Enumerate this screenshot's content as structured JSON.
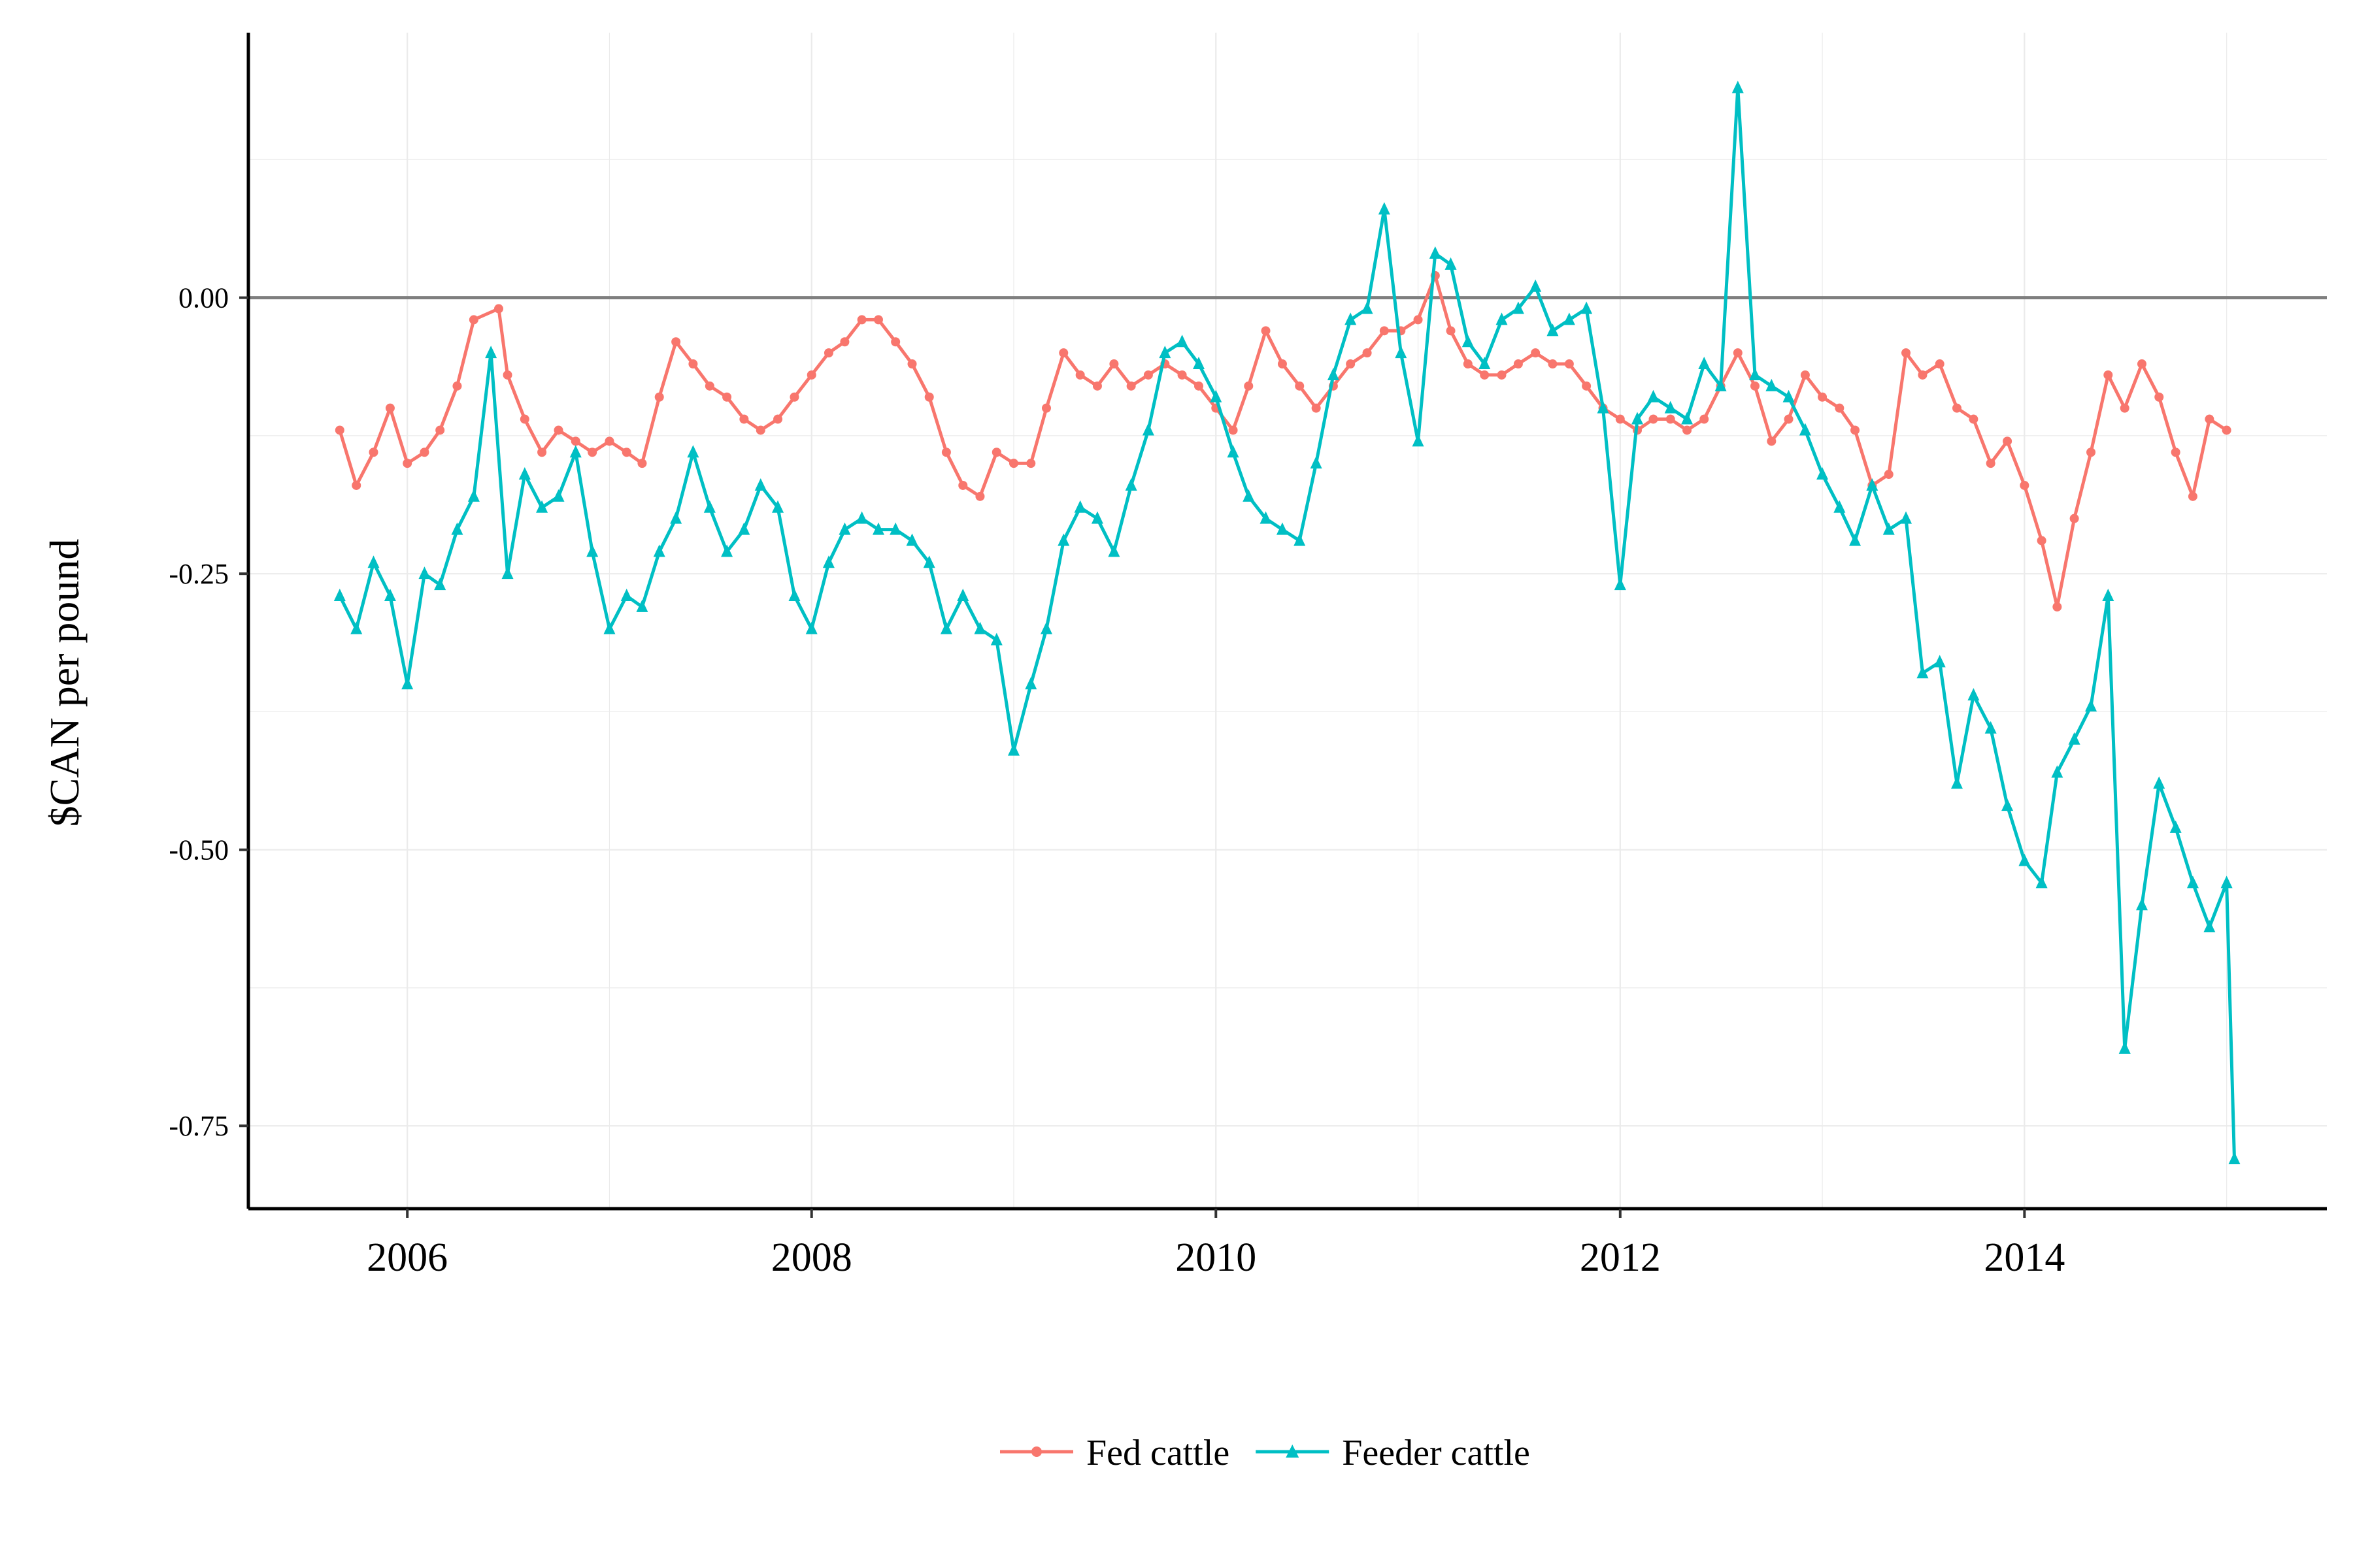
{
  "chart_data": {
    "type": "line",
    "title": "",
    "xlabel": "",
    "ylabel": "$CAN per pound",
    "x_ticks": [
      "2006",
      "2008",
      "2010",
      "2012",
      "2014"
    ],
    "y_ticks": [
      "0.00",
      "-0.25",
      "-0.50",
      "-0.75"
    ],
    "xlim": [
      "2005-03-20",
      "2015-07-01"
    ],
    "ylim": [
      -0.825,
      0.24
    ],
    "reference_line_y": 0.0,
    "grid": true,
    "legend_position": "bottom",
    "series": [
      {
        "name": "Fed cattle",
        "color": "#F8766D",
        "marker": "circle",
        "points": [
          [
            "2005-09-01",
            -0.12
          ],
          [
            "2005-10-01",
            -0.17
          ],
          [
            "2005-11-01",
            -0.14
          ],
          [
            "2005-12-01",
            -0.1
          ],
          [
            "2006-01-01",
            -0.15
          ],
          [
            "2006-02-01",
            -0.14
          ],
          [
            "2006-03-01",
            -0.12
          ],
          [
            "2006-04-01",
            -0.08
          ],
          [
            "2006-05-01",
            -0.02
          ],
          [
            "2006-06-15",
            -0.01
          ],
          [
            "2006-07-01",
            -0.07
          ],
          [
            "2006-08-01",
            -0.11
          ],
          [
            "2006-09-01",
            -0.14
          ],
          [
            "2006-10-01",
            -0.12
          ],
          [
            "2006-11-01",
            -0.13
          ],
          [
            "2006-12-01",
            -0.14
          ],
          [
            "2007-01-01",
            -0.13
          ],
          [
            "2007-02-01",
            -0.14
          ],
          [
            "2007-03-01",
            -0.15
          ],
          [
            "2007-04-01",
            -0.09
          ],
          [
            "2007-05-01",
            -0.04
          ],
          [
            "2007-06-01",
            -0.06
          ],
          [
            "2007-07-01",
            -0.08
          ],
          [
            "2007-08-01",
            -0.09
          ],
          [
            "2007-09-01",
            -0.11
          ],
          [
            "2007-10-01",
            -0.12
          ],
          [
            "2007-11-01",
            -0.11
          ],
          [
            "2007-12-01",
            -0.09
          ],
          [
            "2008-01-01",
            -0.07
          ],
          [
            "2008-02-01",
            -0.05
          ],
          [
            "2008-03-01",
            -0.04
          ],
          [
            "2008-04-01",
            -0.02
          ],
          [
            "2008-05-01",
            -0.02
          ],
          [
            "2008-06-01",
            -0.04
          ],
          [
            "2008-07-01",
            -0.06
          ],
          [
            "2008-08-01",
            -0.09
          ],
          [
            "2008-09-01",
            -0.14
          ],
          [
            "2008-10-01",
            -0.17
          ],
          [
            "2008-11-01",
            -0.18
          ],
          [
            "2008-12-01",
            -0.14
          ],
          [
            "2009-01-01",
            -0.15
          ],
          [
            "2009-02-01",
            -0.15
          ],
          [
            "2009-03-01",
            -0.1
          ],
          [
            "2009-04-01",
            -0.05
          ],
          [
            "2009-05-01",
            -0.07
          ],
          [
            "2009-06-01",
            -0.08
          ],
          [
            "2009-07-01",
            -0.06
          ],
          [
            "2009-08-01",
            -0.08
          ],
          [
            "2009-09-01",
            -0.07
          ],
          [
            "2009-10-01",
            -0.06
          ],
          [
            "2009-11-01",
            -0.07
          ],
          [
            "2009-12-01",
            -0.08
          ],
          [
            "2010-01-01",
            -0.1
          ],
          [
            "2010-02-01",
            -0.12
          ],
          [
            "2010-03-01",
            -0.08
          ],
          [
            "2010-04-01",
            -0.03
          ],
          [
            "2010-05-01",
            -0.06
          ],
          [
            "2010-06-01",
            -0.08
          ],
          [
            "2010-07-01",
            -0.1
          ],
          [
            "2010-08-01",
            -0.08
          ],
          [
            "2010-09-01",
            -0.06
          ],
          [
            "2010-10-01",
            -0.05
          ],
          [
            "2010-11-01",
            -0.03
          ],
          [
            "2010-12-01",
            -0.03
          ],
          [
            "2011-01-01",
            -0.02
          ],
          [
            "2011-02-01",
            0.02
          ],
          [
            "2011-03-01",
            -0.03
          ],
          [
            "2011-04-01",
            -0.06
          ],
          [
            "2011-05-01",
            -0.07
          ],
          [
            "2011-06-01",
            -0.07
          ],
          [
            "2011-07-01",
            -0.06
          ],
          [
            "2011-08-01",
            -0.05
          ],
          [
            "2011-09-01",
            -0.06
          ],
          [
            "2011-10-01",
            -0.06
          ],
          [
            "2011-11-01",
            -0.08
          ],
          [
            "2011-12-01",
            -0.1
          ],
          [
            "2012-01-01",
            -0.11
          ],
          [
            "2012-02-01",
            -0.12
          ],
          [
            "2012-03-01",
            -0.11
          ],
          [
            "2012-04-01",
            -0.11
          ],
          [
            "2012-05-01",
            -0.12
          ],
          [
            "2012-06-01",
            -0.11
          ],
          [
            "2012-07-01",
            -0.08
          ],
          [
            "2012-08-01",
            -0.05
          ],
          [
            "2012-09-01",
            -0.08
          ],
          [
            "2012-10-01",
            -0.13
          ],
          [
            "2012-11-01",
            -0.11
          ],
          [
            "2012-12-01",
            -0.07
          ],
          [
            "2013-01-01",
            -0.09
          ],
          [
            "2013-02-01",
            -0.1
          ],
          [
            "2013-03-01",
            -0.12
          ],
          [
            "2013-04-01",
            -0.17
          ],
          [
            "2013-05-01",
            -0.16
          ],
          [
            "2013-06-01",
            -0.05
          ],
          [
            "2013-07-01",
            -0.07
          ],
          [
            "2013-08-01",
            -0.06
          ],
          [
            "2013-09-01",
            -0.1
          ],
          [
            "2013-10-01",
            -0.11
          ],
          [
            "2013-11-01",
            -0.15
          ],
          [
            "2013-12-01",
            -0.13
          ],
          [
            "2014-01-01",
            -0.17
          ],
          [
            "2014-02-01",
            -0.22
          ],
          [
            "2014-03-01",
            -0.28
          ],
          [
            "2014-04-01",
            -0.2
          ],
          [
            "2014-05-01",
            -0.14
          ],
          [
            "2014-06-01",
            -0.07
          ],
          [
            "2014-07-01",
            -0.1
          ],
          [
            "2014-08-01",
            -0.06
          ],
          [
            "2014-09-01",
            -0.09
          ],
          [
            "2014-10-01",
            -0.14
          ],
          [
            "2014-11-01",
            -0.18
          ],
          [
            "2014-12-01",
            -0.11
          ],
          [
            "2015-01-01",
            -0.12
          ]
        ]
      },
      {
        "name": "Feeder cattle",
        "color": "#00BFC4",
        "marker": "triangle",
        "points": [
          [
            "2005-09-01",
            -0.27
          ],
          [
            "2005-10-01",
            -0.3
          ],
          [
            "2005-11-01",
            -0.24
          ],
          [
            "2005-12-01",
            -0.27
          ],
          [
            "2006-01-01",
            -0.35
          ],
          [
            "2006-02-01",
            -0.25
          ],
          [
            "2006-03-01",
            -0.26
          ],
          [
            "2006-04-01",
            -0.21
          ],
          [
            "2006-05-01",
            -0.18
          ],
          [
            "2006-06-01",
            -0.05
          ],
          [
            "2006-07-01",
            -0.25
          ],
          [
            "2006-08-01",
            -0.16
          ],
          [
            "2006-09-01",
            -0.19
          ],
          [
            "2006-10-01",
            -0.18
          ],
          [
            "2006-11-01",
            -0.14
          ],
          [
            "2006-12-01",
            -0.23
          ],
          [
            "2007-01-01",
            -0.3
          ],
          [
            "2007-02-01",
            -0.27
          ],
          [
            "2007-03-01",
            -0.28
          ],
          [
            "2007-04-01",
            -0.23
          ],
          [
            "2007-05-01",
            -0.2
          ],
          [
            "2007-06-01",
            -0.14
          ],
          [
            "2007-07-01",
            -0.19
          ],
          [
            "2007-08-01",
            -0.23
          ],
          [
            "2007-09-01",
            -0.21
          ],
          [
            "2007-10-01",
            -0.17
          ],
          [
            "2007-11-01",
            -0.19
          ],
          [
            "2007-12-01",
            -0.27
          ],
          [
            "2008-01-01",
            -0.3
          ],
          [
            "2008-02-01",
            -0.24
          ],
          [
            "2008-03-01",
            -0.21
          ],
          [
            "2008-04-01",
            -0.2
          ],
          [
            "2008-05-01",
            -0.21
          ],
          [
            "2008-06-01",
            -0.21
          ],
          [
            "2008-07-01",
            -0.22
          ],
          [
            "2008-08-01",
            -0.24
          ],
          [
            "2008-09-01",
            -0.3
          ],
          [
            "2008-10-01",
            -0.27
          ],
          [
            "2008-11-01",
            -0.3
          ],
          [
            "2008-12-01",
            -0.31
          ],
          [
            "2009-01-01",
            -0.41
          ],
          [
            "2009-02-01",
            -0.35
          ],
          [
            "2009-03-01",
            -0.3
          ],
          [
            "2009-04-01",
            -0.22
          ],
          [
            "2009-05-01",
            -0.19
          ],
          [
            "2009-06-01",
            -0.2
          ],
          [
            "2009-07-01",
            -0.23
          ],
          [
            "2009-08-01",
            -0.17
          ],
          [
            "2009-09-01",
            -0.12
          ],
          [
            "2009-10-01",
            -0.05
          ],
          [
            "2009-11-01",
            -0.04
          ],
          [
            "2009-12-01",
            -0.06
          ],
          [
            "2010-01-01",
            -0.09
          ],
          [
            "2010-02-01",
            -0.14
          ],
          [
            "2010-03-01",
            -0.18
          ],
          [
            "2010-04-01",
            -0.2
          ],
          [
            "2010-05-01",
            -0.21
          ],
          [
            "2010-06-01",
            -0.22
          ],
          [
            "2010-07-01",
            -0.15
          ],
          [
            "2010-08-01",
            -0.07
          ],
          [
            "2010-09-01",
            -0.02
          ],
          [
            "2010-10-01",
            -0.01
          ],
          [
            "2010-11-01",
            0.08
          ],
          [
            "2010-12-01",
            -0.05
          ],
          [
            "2011-01-01",
            -0.13
          ],
          [
            "2011-02-01",
            0.04
          ],
          [
            "2011-03-01",
            0.03
          ],
          [
            "2011-04-01",
            -0.04
          ],
          [
            "2011-05-01",
            -0.06
          ],
          [
            "2011-06-01",
            -0.02
          ],
          [
            "2011-07-01",
            -0.01
          ],
          [
            "2011-08-01",
            0.01
          ],
          [
            "2011-09-01",
            -0.03
          ],
          [
            "2011-10-01",
            -0.02
          ],
          [
            "2011-11-01",
            -0.01
          ],
          [
            "2011-12-01",
            -0.1
          ],
          [
            "2012-01-01",
            -0.26
          ],
          [
            "2012-02-01",
            -0.11
          ],
          [
            "2012-03-01",
            -0.09
          ],
          [
            "2012-04-01",
            -0.1
          ],
          [
            "2012-05-01",
            -0.11
          ],
          [
            "2012-06-01",
            -0.06
          ],
          [
            "2012-07-01",
            -0.08
          ],
          [
            "2012-08-01",
            0.19
          ],
          [
            "2012-09-01",
            -0.07
          ],
          [
            "2012-10-01",
            -0.08
          ],
          [
            "2012-11-01",
            -0.09
          ],
          [
            "2012-12-01",
            -0.12
          ],
          [
            "2013-01-01",
            -0.16
          ],
          [
            "2013-02-01",
            -0.19
          ],
          [
            "2013-03-01",
            -0.22
          ],
          [
            "2013-04-01",
            -0.17
          ],
          [
            "2013-05-01",
            -0.21
          ],
          [
            "2013-06-01",
            -0.2
          ],
          [
            "2013-07-01",
            -0.34
          ],
          [
            "2013-08-01",
            -0.33
          ],
          [
            "2013-09-01",
            -0.44
          ],
          [
            "2013-10-01",
            -0.36
          ],
          [
            "2013-11-01",
            -0.39
          ],
          [
            "2013-12-01",
            -0.46
          ],
          [
            "2014-01-01",
            -0.51
          ],
          [
            "2014-02-01",
            -0.53
          ],
          [
            "2014-03-01",
            -0.43
          ],
          [
            "2014-04-01",
            -0.4
          ],
          [
            "2014-05-01",
            -0.37
          ],
          [
            "2014-06-01",
            -0.27
          ],
          [
            "2014-07-01",
            -0.68
          ],
          [
            "2014-08-01",
            -0.55
          ],
          [
            "2014-09-01",
            -0.44
          ],
          [
            "2014-10-01",
            -0.48
          ],
          [
            "2014-11-01",
            -0.53
          ],
          [
            "2014-12-01",
            -0.57
          ],
          [
            "2015-01-01",
            -0.53
          ],
          [
            "2015-01-15",
            -0.78
          ]
        ]
      }
    ]
  }
}
